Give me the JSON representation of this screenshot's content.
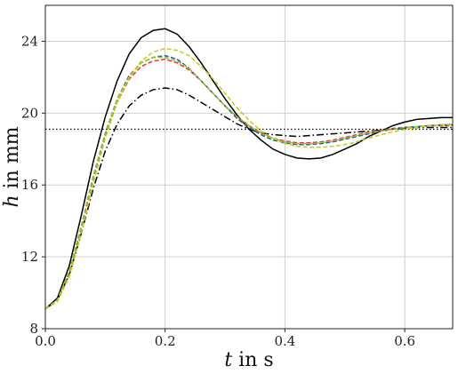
{
  "chart_data": {
    "type": "line",
    "xlabel": {
      "var": "t",
      "rest": " in s"
    },
    "ylabel": {
      "var": "h",
      "rest": " in mm"
    },
    "xlim": [
      0.0,
      0.68
    ],
    "ylim": [
      8,
      26
    ],
    "xticks": [
      {
        "value": 0.0,
        "label": "0.0"
      },
      {
        "value": 0.2,
        "label": "0.2"
      },
      {
        "value": 0.4,
        "label": "0.4"
      },
      {
        "value": 0.6,
        "label": "0.6"
      }
    ],
    "yticks": [
      {
        "value": 8,
        "label": "8"
      },
      {
        "value": 12,
        "label": "12"
      },
      {
        "value": 16,
        "label": "16"
      },
      {
        "value": 20,
        "label": "20"
      },
      {
        "value": 24,
        "label": "24"
      }
    ],
    "grid": true,
    "reference_line": {
      "y": 19.1,
      "color": "#000000",
      "style": "dotted"
    },
    "series": [
      {
        "color": "#000000",
        "style": "solid",
        "x": [
          0.0,
          0.02,
          0.04,
          0.06,
          0.08,
          0.1,
          0.12,
          0.14,
          0.16,
          0.18,
          0.2,
          0.22,
          0.24,
          0.26,
          0.28,
          0.3,
          0.32,
          0.34,
          0.36,
          0.38,
          0.4,
          0.42,
          0.44,
          0.46,
          0.48,
          0.5,
          0.52,
          0.54,
          0.56,
          0.58,
          0.6,
          0.62,
          0.64,
          0.66,
          0.68
        ],
        "y": [
          9.1,
          9.7,
          11.5,
          14.3,
          17.3,
          19.8,
          21.8,
          23.3,
          24.2,
          24.6,
          24.7,
          24.4,
          23.7,
          22.8,
          21.8,
          20.8,
          19.9,
          19.1,
          18.5,
          18.0,
          17.7,
          17.5,
          17.45,
          17.5,
          17.7,
          18.0,
          18.3,
          18.7,
          19.0,
          19.3,
          19.5,
          19.65,
          19.7,
          19.75,
          19.75
        ]
      },
      {
        "color": "#000000",
        "style": "dashdot",
        "x": [
          0.0,
          0.02,
          0.04,
          0.06,
          0.08,
          0.1,
          0.12,
          0.14,
          0.16,
          0.18,
          0.2,
          0.22,
          0.24,
          0.26,
          0.28,
          0.3,
          0.32,
          0.34,
          0.36,
          0.38,
          0.4,
          0.42,
          0.44,
          0.46,
          0.48,
          0.5,
          0.52,
          0.54,
          0.56,
          0.58,
          0.6,
          0.62,
          0.64,
          0.66,
          0.68
        ],
        "y": [
          9.1,
          9.6,
          11.0,
          13.3,
          15.8,
          17.9,
          19.4,
          20.4,
          21.0,
          21.3,
          21.4,
          21.3,
          21.0,
          20.6,
          20.2,
          19.8,
          19.4,
          19.1,
          18.9,
          18.8,
          18.75,
          18.7,
          18.75,
          18.8,
          18.85,
          18.9,
          18.95,
          19.0,
          19.05,
          19.1,
          19.15,
          19.2,
          19.2,
          19.2,
          19.2
        ]
      },
      {
        "color": "#e8392b",
        "style": "dashed",
        "x": [
          0.0,
          0.02,
          0.04,
          0.06,
          0.08,
          0.1,
          0.12,
          0.14,
          0.16,
          0.18,
          0.2,
          0.22,
          0.24,
          0.26,
          0.28,
          0.3,
          0.32,
          0.34,
          0.36,
          0.38,
          0.4,
          0.42,
          0.44,
          0.46,
          0.48,
          0.5,
          0.52,
          0.54,
          0.56,
          0.58,
          0.6,
          0.62,
          0.64,
          0.66,
          0.68
        ],
        "y": [
          9.1,
          9.6,
          11.1,
          13.6,
          16.4,
          18.8,
          20.6,
          21.9,
          22.6,
          22.9,
          23.0,
          22.8,
          22.4,
          21.8,
          21.1,
          20.4,
          19.8,
          19.3,
          18.9,
          18.6,
          18.45,
          18.35,
          18.35,
          18.4,
          18.5,
          18.65,
          18.8,
          18.95,
          19.05,
          19.15,
          19.2,
          19.25,
          19.3,
          19.3,
          19.3
        ]
      },
      {
        "color": "#1f5f86",
        "style": "dashed",
        "x": [
          0.0,
          0.02,
          0.04,
          0.06,
          0.08,
          0.1,
          0.12,
          0.14,
          0.16,
          0.18,
          0.2,
          0.22,
          0.24,
          0.26,
          0.28,
          0.3,
          0.32,
          0.34,
          0.36,
          0.38,
          0.4,
          0.42,
          0.44,
          0.46,
          0.48,
          0.5,
          0.52,
          0.54,
          0.56,
          0.58,
          0.6,
          0.62,
          0.64,
          0.66,
          0.68
        ],
        "y": [
          9.1,
          9.6,
          11.2,
          13.7,
          16.5,
          18.9,
          20.8,
          22.1,
          22.8,
          23.1,
          23.2,
          23.0,
          22.5,
          21.8,
          21.1,
          20.4,
          19.7,
          19.2,
          18.8,
          18.5,
          18.35,
          18.25,
          18.25,
          18.3,
          18.4,
          18.55,
          18.7,
          18.85,
          19.0,
          19.1,
          19.2,
          19.25,
          19.3,
          19.35,
          19.35
        ]
      },
      {
        "color": "#8cc63f",
        "style": "dashed",
        "x": [
          0.0,
          0.02,
          0.04,
          0.06,
          0.08,
          0.1,
          0.12,
          0.14,
          0.16,
          0.18,
          0.2,
          0.22,
          0.24,
          0.26,
          0.28,
          0.3,
          0.32,
          0.34,
          0.36,
          0.38,
          0.4,
          0.42,
          0.44,
          0.46,
          0.48,
          0.5,
          0.52,
          0.54,
          0.56,
          0.58,
          0.6,
          0.62,
          0.64,
          0.66,
          0.68
        ],
        "y": [
          9.1,
          9.6,
          11.2,
          13.7,
          16.5,
          18.9,
          20.8,
          22.0,
          22.8,
          23.1,
          23.1,
          22.9,
          22.5,
          21.8,
          21.1,
          20.4,
          19.8,
          19.3,
          18.9,
          18.6,
          18.4,
          18.3,
          18.3,
          18.35,
          18.45,
          18.6,
          18.75,
          18.9,
          19.0,
          19.1,
          19.2,
          19.25,
          19.3,
          19.35,
          19.35
        ]
      },
      {
        "color": "#c9c919",
        "style": "dashed",
        "x": [
          0.0,
          0.02,
          0.04,
          0.06,
          0.08,
          0.1,
          0.12,
          0.14,
          0.16,
          0.18,
          0.2,
          0.22,
          0.24,
          0.26,
          0.28,
          0.3,
          0.32,
          0.34,
          0.36,
          0.38,
          0.4,
          0.42,
          0.44,
          0.46,
          0.48,
          0.5,
          0.52,
          0.54,
          0.56,
          0.58,
          0.6,
          0.62,
          0.64,
          0.66,
          0.68
        ],
        "y": [
          9.1,
          9.5,
          10.9,
          13.3,
          16.1,
          18.6,
          20.6,
          22.0,
          22.9,
          23.4,
          23.6,
          23.5,
          23.2,
          22.6,
          21.9,
          21.1,
          20.3,
          19.6,
          19.0,
          18.6,
          18.3,
          18.15,
          18.1,
          18.1,
          18.15,
          18.25,
          18.4,
          18.6,
          18.8,
          18.95,
          19.1,
          19.2,
          19.3,
          19.35,
          19.4
        ]
      }
    ]
  }
}
